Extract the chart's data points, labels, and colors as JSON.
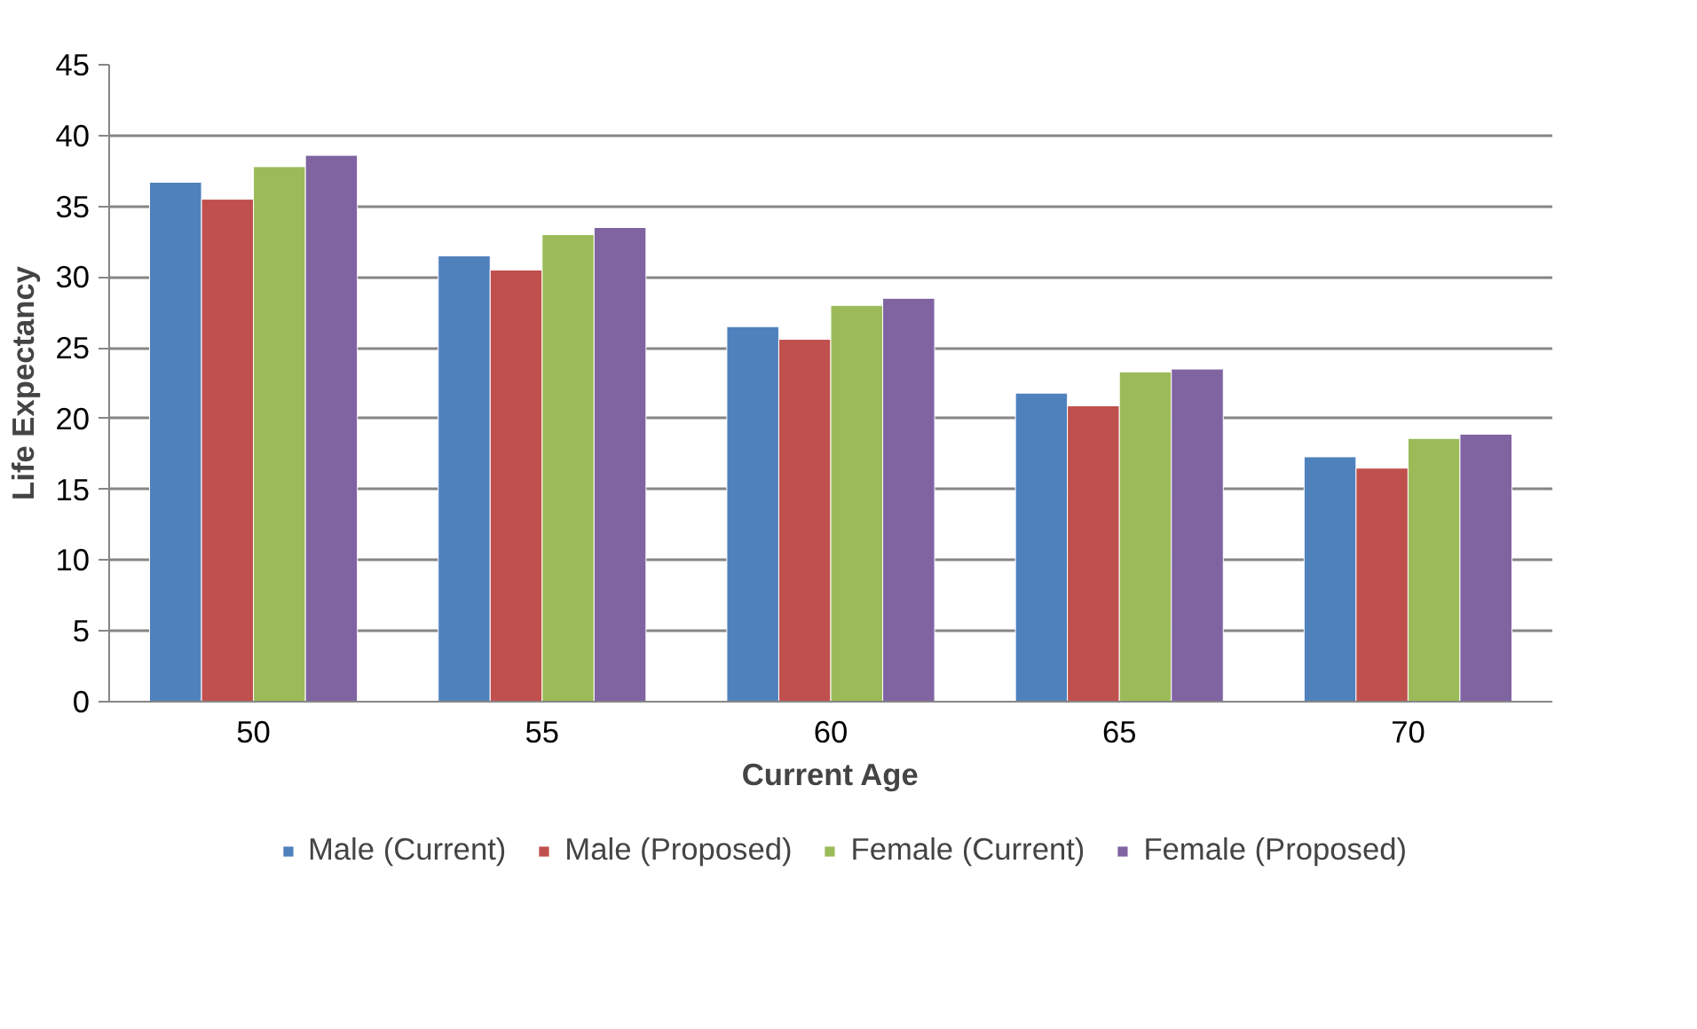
{
  "chart_data": {
    "type": "bar",
    "xlabel": "Current Age",
    "ylabel": "Life Expectancy",
    "categories": [
      "50",
      "55",
      "60",
      "65",
      "70"
    ],
    "series": [
      {
        "name": "Male (Current)",
        "color": "#4f81bd",
        "values": [
          36.7,
          31.5,
          26.5,
          21.8,
          17.3
        ]
      },
      {
        "name": "Male (Proposed)",
        "color": "#c0504d",
        "values": [
          35.5,
          30.5,
          25.6,
          20.9,
          16.5
        ]
      },
      {
        "name": "Female (Current)",
        "color": "#9bbb59",
        "values": [
          37.8,
          33.0,
          28.0,
          23.3,
          18.6
        ]
      },
      {
        "name": "Female (Proposed)",
        "color": "#8064a2",
        "values": [
          38.6,
          33.5,
          28.5,
          23.5,
          18.9
        ]
      }
    ],
    "ylim": [
      0,
      45
    ],
    "yticks": [
      0,
      5,
      10,
      15,
      20,
      25,
      30,
      35,
      40,
      45
    ],
    "grid": "y",
    "legend": "bottom"
  }
}
